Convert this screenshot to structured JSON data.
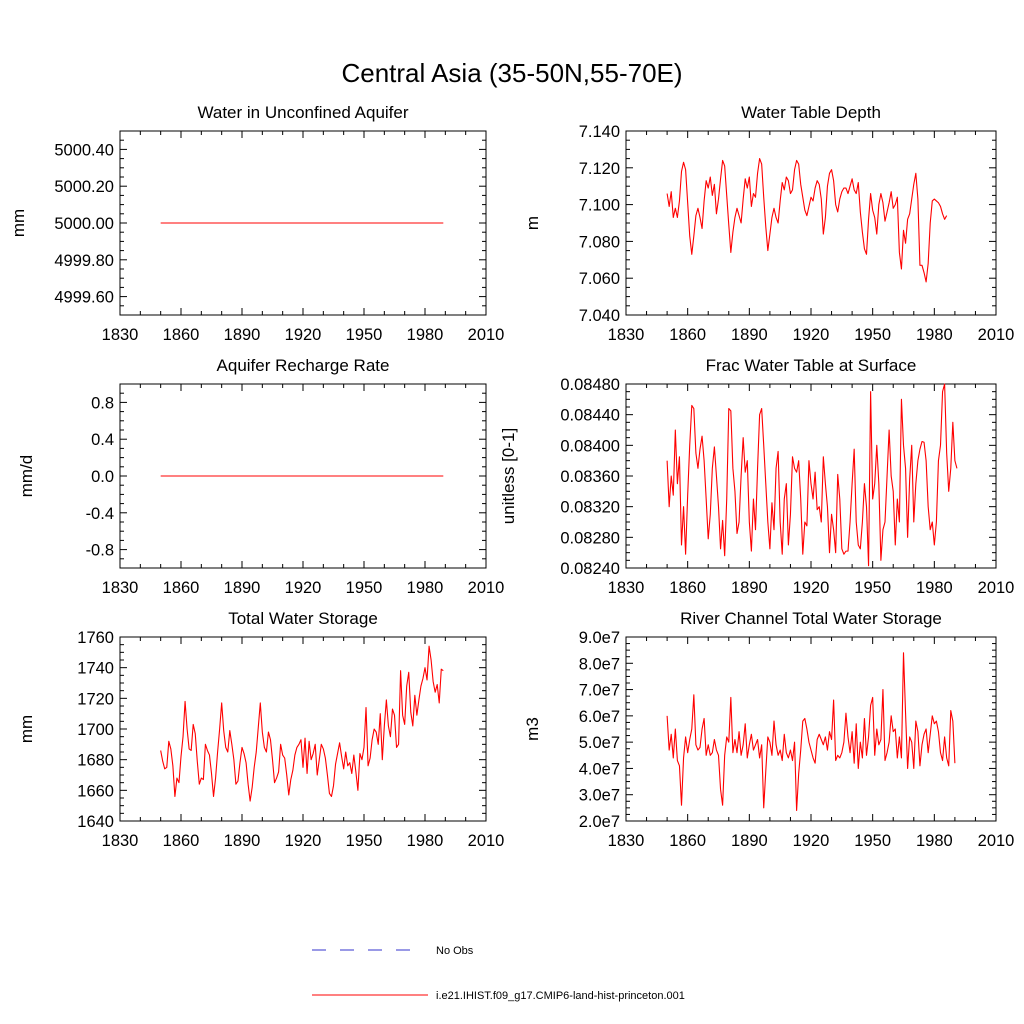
{
  "figure": {
    "title": "Central Asia (35-50N,55-70E)"
  },
  "legend": {
    "entries": [
      {
        "label": "No Obs",
        "color": "#3333cc",
        "style": "dashed"
      },
      {
        "label": "i.e21.IHIST.f09_g17.CMIP6-land-hist-princeton.001",
        "color": "#ff0000",
        "style": "solid"
      }
    ]
  },
  "chart_data": [
    {
      "type": "line",
      "title": "Water in Unconfined Aquifer",
      "ylabel": "mm",
      "xlim": [
        1830,
        2010
      ],
      "xticks": [
        1830,
        1860,
        1890,
        1920,
        1950,
        1980,
        2010
      ],
      "ylim": [
        4999.5,
        5000.5
      ],
      "yticks": [
        4999.6,
        4999.8,
        5000.0,
        5000.2,
        5000.4
      ],
      "ytick_labels": [
        "4999.60",
        "4999.80",
        "5000.00",
        "5000.20",
        "5000.40"
      ],
      "x": [
        1850,
        1989
      ],
      "series": [
        {
          "values": [
            5000.0,
            5000.0
          ],
          "color": "#ff0000"
        }
      ]
    },
    {
      "type": "line",
      "title": "Water Table Depth",
      "ylabel": "m",
      "xlim": [
        1830,
        2010
      ],
      "xticks": [
        1830,
        1860,
        1890,
        1920,
        1950,
        1980,
        2010
      ],
      "ylim": [
        7.04,
        7.14
      ],
      "yticks": [
        7.04,
        7.06,
        7.08,
        7.1,
        7.12,
        7.14
      ],
      "ytick_labels": [
        "7.040",
        "7.060",
        "7.080",
        "7.100",
        "7.120",
        "7.140"
      ],
      "x_start": 1850,
      "series": [
        {
          "color": "#ff0000",
          "values": [
            7.106,
            7.099,
            7.107,
            7.093,
            7.098,
            7.093,
            7.102,
            7.118,
            7.123,
            7.119,
            7.101,
            7.083,
            7.073,
            7.083,
            7.094,
            7.098,
            7.093,
            7.087,
            7.102,
            7.113,
            7.109,
            7.115,
            7.105,
            7.111,
            7.095,
            7.103,
            7.114,
            7.124,
            7.121,
            7.105,
            7.089,
            7.074,
            7.085,
            7.093,
            7.098,
            7.094,
            7.09,
            7.103,
            7.114,
            7.109,
            7.115,
            7.099,
            7.106,
            7.104,
            7.117,
            7.125,
            7.122,
            7.104,
            7.088,
            7.075,
            7.084,
            7.093,
            7.098,
            7.093,
            7.09,
            7.102,
            7.112,
            7.108,
            7.115,
            7.113,
            7.106,
            7.108,
            7.119,
            7.124,
            7.122,
            7.111,
            7.104,
            7.097,
            7.094,
            7.099,
            7.104,
            7.102,
            7.109,
            7.113,
            7.111,
            7.103,
            7.084,
            7.093,
            7.11,
            7.117,
            7.119,
            7.113,
            7.1,
            7.096,
            7.103,
            7.107,
            7.109,
            7.109,
            7.106,
            7.11,
            7.114,
            7.108,
            7.106,
            7.112,
            7.096,
            7.085,
            7.076,
            7.073,
            7.092,
            7.106,
            7.097,
            7.093,
            7.084,
            7.1,
            7.106,
            7.101,
            7.091,
            7.096,
            7.101,
            7.107,
            7.098,
            7.1,
            7.104,
            7.074,
            7.065,
            7.086,
            7.079,
            7.092,
            7.095,
            7.103,
            7.111,
            7.117,
            7.103,
            7.067,
            7.067,
            7.063,
            7.058,
            7.068,
            7.09,
            7.102,
            7.103,
            7.102,
            7.101,
            7.099,
            7.095,
            7.092,
            7.094
          ]
        }
      ]
    },
    {
      "type": "line",
      "title": "Aquifer Recharge Rate",
      "ylabel": "mm/d",
      "xlim": [
        1830,
        2010
      ],
      "xticks": [
        1830,
        1860,
        1890,
        1920,
        1950,
        1980,
        2010
      ],
      "ylim": [
        -1.0,
        1.0
      ],
      "yticks": [
        -0.8,
        -0.4,
        0.0,
        0.4,
        0.8
      ],
      "ytick_labels": [
        "-0.8",
        "-0.4",
        "0.0",
        "0.4",
        "0.8"
      ],
      "x": [
        1850,
        1989
      ],
      "series": [
        {
          "values": [
            0.0,
            0.0
          ],
          "color": "#ff0000"
        }
      ]
    },
    {
      "type": "line",
      "title": "Frac Water Table at Surface",
      "ylabel": "unitless [0-1]",
      "xlim": [
        1830,
        2010
      ],
      "xticks": [
        1830,
        1860,
        1890,
        1920,
        1950,
        1980,
        2010
      ],
      "ylim": [
        0.0824,
        0.0848
      ],
      "yticks": [
        0.0824,
        0.0828,
        0.0832,
        0.0836,
        0.084,
        0.0844,
        0.0848
      ],
      "ytick_labels": [
        "0.08240",
        "0.08280",
        "0.08320",
        "0.08360",
        "0.08400",
        "0.08440",
        "0.08480"
      ],
      "x_start": 1850,
      "series": [
        {
          "color": "#ff0000",
          "values": [
            0.0838,
            0.0832,
            0.0836,
            0.08335,
            0.0842,
            0.0835,
            0.08385,
            0.0827,
            0.0832,
            0.08258,
            0.08335,
            0.084,
            0.08452,
            0.08448,
            0.0839,
            0.0837,
            0.08395,
            0.08412,
            0.0838,
            0.0833,
            0.08278,
            0.0831,
            0.0837,
            0.08398,
            0.0836,
            0.0832,
            0.08265,
            0.08302,
            0.08256,
            0.0833,
            0.08448,
            0.08445,
            0.0837,
            0.0834,
            0.08285,
            0.083,
            0.0836,
            0.0841,
            0.08365,
            0.0838,
            0.083,
            0.08262,
            0.0833,
            0.0829,
            0.0837,
            0.0844,
            0.08448,
            0.084,
            0.0835,
            0.083,
            0.08265,
            0.08325,
            0.0829,
            0.0837,
            0.08392,
            0.083,
            0.08258,
            0.0833,
            0.0835,
            0.0827,
            0.0831,
            0.08385,
            0.0837,
            0.08365,
            0.0838,
            0.0833,
            0.08258,
            0.083,
            0.08295,
            0.0838,
            0.0835,
            0.0833,
            0.08365,
            0.08316,
            0.0832,
            0.083,
            0.08385,
            0.0835,
            0.0832,
            0.0826,
            0.0831,
            0.0829,
            0.0826,
            0.08362,
            0.0833,
            0.08265,
            0.08258,
            0.08262,
            0.08262,
            0.083,
            0.0835,
            0.08395,
            0.083,
            0.0827,
            0.08265,
            0.083,
            0.0835,
            0.0832,
            0.08243,
            0.0847,
            0.0833,
            0.0835,
            0.084,
            0.0835,
            0.0825,
            0.0829,
            0.083,
            0.0836,
            0.0842,
            0.0836,
            0.0834,
            0.0827,
            0.0833,
            0.083,
            0.0846,
            0.084,
            0.0837,
            0.0828,
            0.08356,
            0.084,
            0.083,
            0.0835,
            0.0838,
            0.08395,
            0.08405,
            0.08404,
            0.0838,
            0.0832,
            0.0829,
            0.083,
            0.0827,
            0.083,
            0.0838,
            0.084,
            0.0847,
            0.0848,
            0.0839,
            0.0834,
            0.0837,
            0.0843,
            0.0838,
            0.0837
          ]
        }
      ]
    },
    {
      "type": "line",
      "title": "Total Water Storage",
      "ylabel": "mm",
      "xlim": [
        1830,
        2010
      ],
      "xticks": [
        1830,
        1860,
        1890,
        1920,
        1950,
        1980,
        2010
      ],
      "ylim": [
        1640,
        1760
      ],
      "yticks": [
        1640,
        1660,
        1680,
        1700,
        1720,
        1740,
        1760
      ],
      "ytick_labels": [
        "1640",
        "1660",
        "1680",
        "1700",
        "1720",
        "1740",
        "1760"
      ],
      "x_start": 1850,
      "series": [
        {
          "color": "#ff0000",
          "values": [
            1686,
            1679,
            1674,
            1675,
            1692,
            1687,
            1676,
            1656,
            1668,
            1665,
            1682,
            1695,
            1718,
            1700,
            1687,
            1686,
            1703,
            1697,
            1679,
            1664,
            1668,
            1667,
            1690,
            1686,
            1683,
            1671,
            1656,
            1668,
            1685,
            1700,
            1717,
            1699,
            1688,
            1685,
            1699,
            1690,
            1680,
            1664,
            1666,
            1678,
            1688,
            1684,
            1678,
            1664,
            1653,
            1662,
            1675,
            1685,
            1701,
            1717,
            1698,
            1688,
            1685,
            1698,
            1693,
            1680,
            1665,
            1668,
            1672,
            1690,
            1683,
            1681,
            1670,
            1657,
            1667,
            1673,
            1683,
            1688,
            1690,
            1693,
            1675,
            1694,
            1671,
            1692,
            1680,
            1684,
            1690,
            1670,
            1680,
            1690,
            1687,
            1681,
            1670,
            1658,
            1656,
            1663,
            1677,
            1684,
            1691,
            1682,
            1674,
            1685,
            1676,
            1678,
            1671,
            1683,
            1672,
            1660,
            1684,
            1680,
            1688,
            1714,
            1676,
            1681,
            1693,
            1700,
            1698,
            1690,
            1710,
            1680,
            1702,
            1719,
            1702,
            1695,
            1713,
            1709,
            1688,
            1690,
            1738,
            1709,
            1703,
            1728,
            1737,
            1711,
            1702,
            1722,
            1709,
            1719,
            1728,
            1733,
            1740,
            1732,
            1754,
            1745,
            1731,
            1724,
            1729,
            1717,
            1739,
            1738
          ]
        }
      ]
    },
    {
      "type": "line",
      "title": "River Channel Total Water Storage",
      "ylabel": "m3",
      "xlim": [
        1830,
        2010
      ],
      "xticks": [
        1830,
        1860,
        1890,
        1920,
        1950,
        1980,
        2010
      ],
      "ylim": [
        20000000,
        90000000
      ],
      "yticks": [
        20000000,
        30000000,
        40000000,
        50000000,
        60000000,
        70000000,
        80000000,
        90000000
      ],
      "ytick_labels": [
        "2.0e7",
        "3.0e7",
        "4.0e7",
        "5.0e7",
        "6.0e7",
        "7.0e7",
        "8.0e7",
        "9.0e7"
      ],
      "x_start": 1850,
      "series": [
        {
          "color": "#ff0000",
          "values": [
            60000000.0,
            47000000.0,
            53000000.0,
            44000000.0,
            55000000.0,
            43000000.0,
            41000000.0,
            26000000.0,
            44000000.0,
            52000000.0,
            46000000.0,
            51000000.0,
            55000000.0,
            68000000.0,
            49000000.0,
            47000000.0,
            48000000.0,
            55000000.0,
            59000000.0,
            45000000.0,
            49000000.0,
            45000000.0,
            46000000.0,
            51000000.0,
            47000000.0,
            45000000.0,
            32000000.0,
            26000000.0,
            45000000.0,
            52000000.0,
            50000000.0,
            67000000.0,
            46000000.0,
            51000000.0,
            46000000.0,
            54000000.0,
            45000000.0,
            49000000.0,
            57000000.0,
            44000000.0,
            49000000.0,
            53000000.0,
            47000000.0,
            49000000.0,
            51000000.0,
            44000000.0,
            49000000.0,
            25000000.0,
            39000000.0,
            52000000.0,
            50000000.0,
            45000000.0,
            58000000.0,
            49000000.0,
            45000000.0,
            47000000.0,
            43000000.0,
            53000000.0,
            46000000.0,
            44000000.0,
            47000000.0,
            43000000.0,
            50000000.0,
            24000000.0,
            38000000.0,
            47000000.0,
            58000000.0,
            59000000.0,
            55000000.0,
            50000000.0,
            47000000.0,
            44000000.0,
            42000000.0,
            51000000.0,
            53000000.0,
            51000000.0,
            49000000.0,
            52000000.0,
            47000000.0,
            54000000.0,
            51000000.0,
            66000000.0,
            43000000.0,
            45000000.0,
            44000000.0,
            46000000.0,
            50000000.0,
            61000000.0,
            52000000.0,
            46000000.0,
            54000000.0,
            42000000.0,
            57000000.0,
            40000000.0,
            50000000.0,
            44000000.0,
            59000000.0,
            45000000.0,
            52000000.0,
            64000000.0,
            67000000.0,
            45000000.0,
            55000000.0,
            49000000.0,
            51000000.0,
            70000000.0,
            43000000.0,
            46000000.0,
            50000000.0,
            60000000.0,
            54000000.0,
            55000000.0,
            44000000.0,
            52000000.0,
            44000000.0,
            84000000.0,
            61000000.0,
            40000000.0,
            52000000.0,
            50000000.0,
            40000000.0,
            58000000.0,
            54000000.0,
            41000000.0,
            49000000.0,
            53000000.0,
            55000000.0,
            46000000.0,
            53000000.0,
            60000000.0,
            57000000.0,
            58000000.0,
            54000000.0,
            46000000.0,
            43000000.0,
            52000000.0,
            44000000.0,
            41000000.0,
            62000000.0,
            58000000.0,
            42000000.0
          ]
        }
      ]
    }
  ]
}
